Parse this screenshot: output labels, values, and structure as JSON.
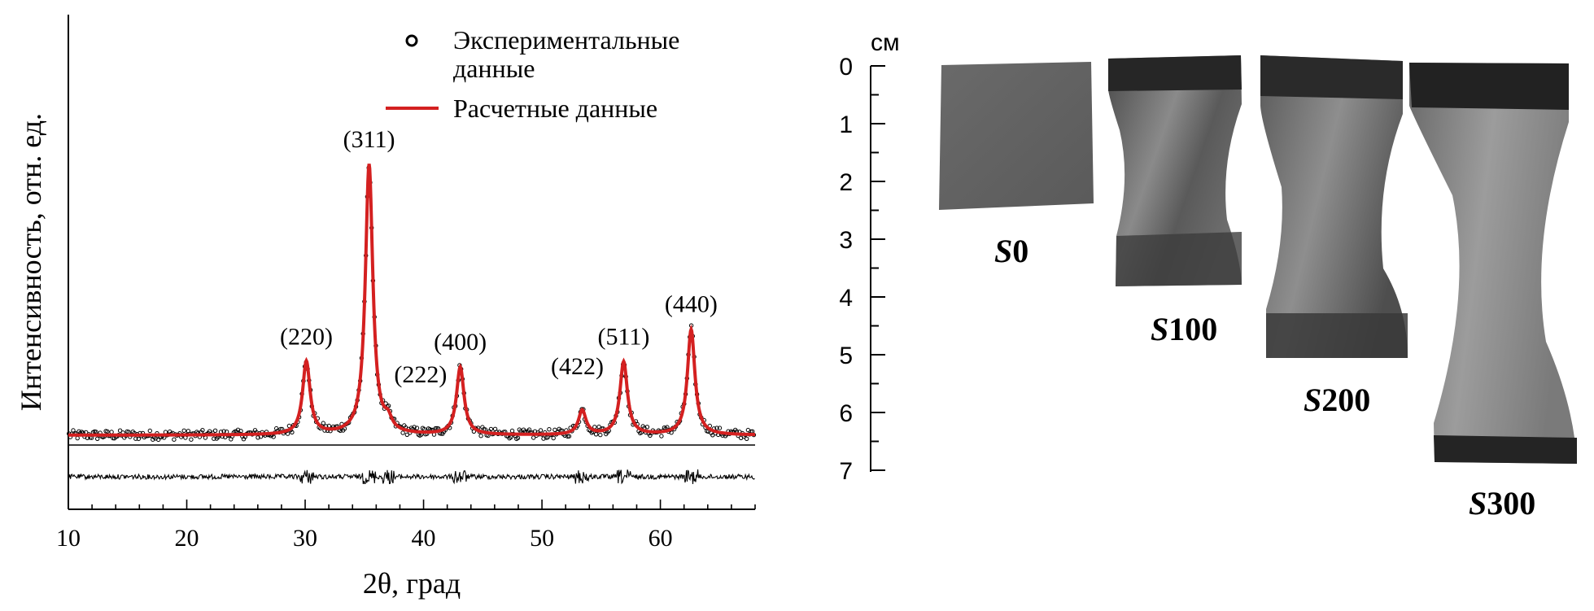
{
  "chart_data": {
    "type": "line",
    "xlabel": "2θ, град",
    "ylabel": "Интенсивность, отн. ед.",
    "xlim": [
      10,
      68
    ],
    "xticks": [
      10,
      20,
      30,
      40,
      50,
      60
    ],
    "grid": false,
    "legend": {
      "position": "top-right",
      "entries": [
        {
          "label_line1": "Экспериментальные",
          "label_line2": "данные",
          "marker": "open-circle",
          "color": "#000000"
        },
        {
          "label_line1": "Расчетные данные",
          "marker": "line",
          "color": "#d42020"
        }
      ]
    },
    "background_level": 0.06,
    "peaks": [
      {
        "label": "(220)",
        "x": 30.1,
        "intensity": 0.27
      },
      {
        "label": "(311)",
        "x": 35.4,
        "intensity": 1.0
      },
      {
        "label": "(222)",
        "x": 37.0,
        "intensity": 0.04
      },
      {
        "label": "(400)",
        "x": 43.1,
        "intensity": 0.25
      },
      {
        "label": "(422)",
        "x": 53.4,
        "intensity": 0.09
      },
      {
        "label": "(511)",
        "x": 56.9,
        "intensity": 0.27
      },
      {
        "label": "(440)",
        "x": 62.6,
        "intensity": 0.39
      }
    ],
    "series": [
      {
        "name": "Экспериментальные данные",
        "style": "open-circle",
        "color": "#000000"
      },
      {
        "name": "Расчетные данные",
        "style": "line",
        "color": "#d42020"
      }
    ],
    "difference_curve": {
      "color": "#000000"
    }
  },
  "photo_panel": {
    "ruler_unit": "см",
    "ruler_ticks": [
      "0",
      "1",
      "2",
      "3",
      "4",
      "5",
      "6",
      "7"
    ],
    "samples": [
      {
        "label_prefix": "S",
        "label_num": "0"
      },
      {
        "label_prefix": "S",
        "label_num": "100"
      },
      {
        "label_prefix": "S",
        "label_num": "200"
      },
      {
        "label_prefix": "S",
        "label_num": "300"
      }
    ]
  }
}
